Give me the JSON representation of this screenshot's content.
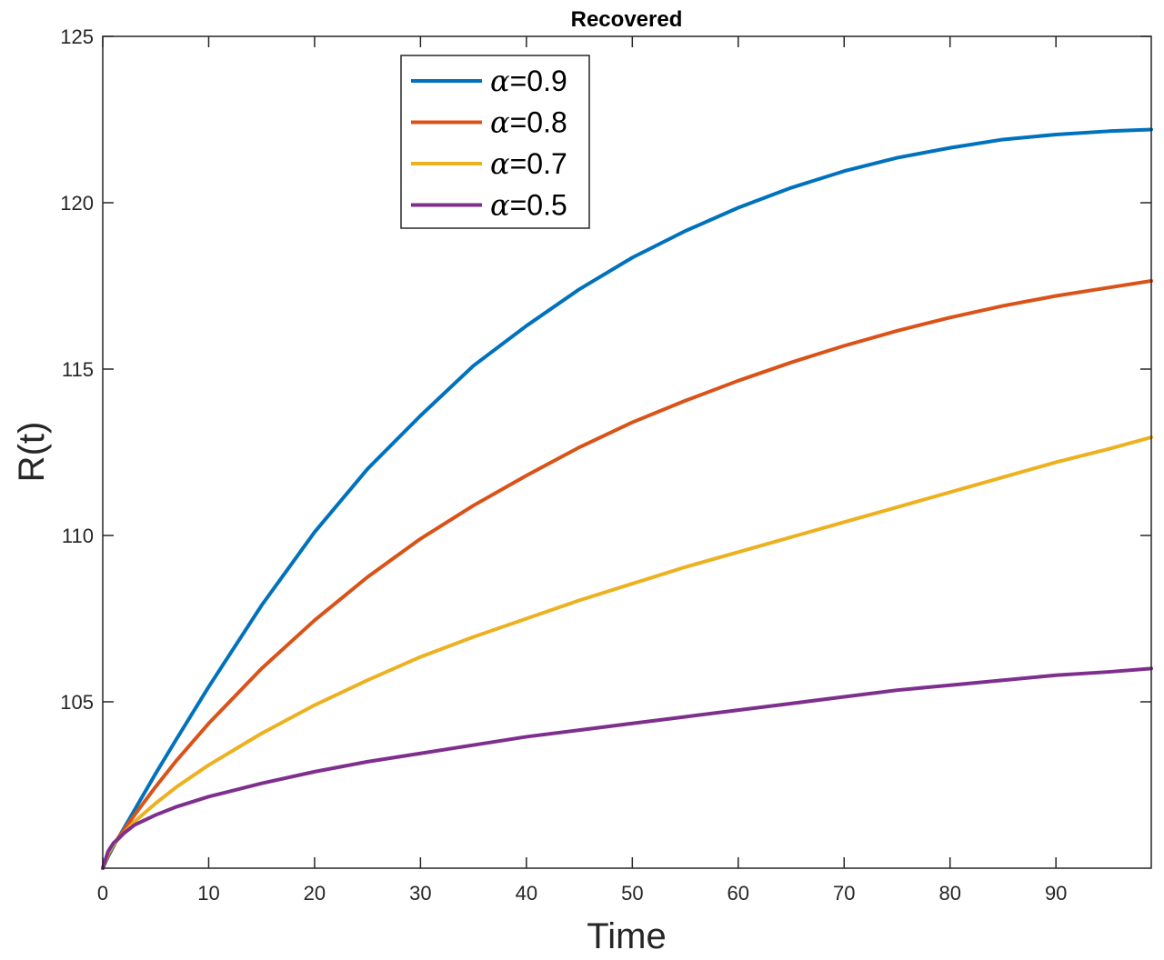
{
  "chart_data": {
    "type": "line",
    "title": "Recovered",
    "xlabel": "Time",
    "ylabel": "R(t)",
    "xlim": [
      0,
      99
    ],
    "ylim": [
      100,
      125
    ],
    "xticks": [
      0,
      10,
      20,
      30,
      40,
      50,
      60,
      70,
      80,
      90
    ],
    "yticks": [
      105,
      110,
      115,
      120,
      125
    ],
    "grid": false,
    "legend_position": "top-center",
    "series": [
      {
        "name": "α=0.9",
        "alpha_symbol": "α",
        "alpha_value": "=0.9",
        "color": "#0072BD",
        "x": [
          0,
          0.5,
          1,
          2,
          3,
          5,
          7,
          10,
          15,
          20,
          25,
          30,
          35,
          40,
          45,
          50,
          55,
          60,
          65,
          70,
          75,
          80,
          85,
          90,
          95,
          99
        ],
        "y": [
          100,
          100.35,
          100.65,
          101.2,
          101.75,
          102.85,
          103.9,
          105.45,
          107.9,
          110.1,
          112.0,
          113.6,
          115.1,
          116.3,
          117.4,
          118.35,
          119.15,
          119.85,
          120.45,
          120.95,
          121.35,
          121.65,
          121.9,
          122.05,
          122.15,
          122.2
        ]
      },
      {
        "name": "α=0.8",
        "alpha_symbol": "α",
        "alpha_value": "=0.8",
        "color": "#D95319",
        "x": [
          0,
          0.5,
          1,
          2,
          3,
          5,
          7,
          10,
          15,
          20,
          25,
          30,
          35,
          40,
          45,
          50,
          55,
          60,
          65,
          70,
          75,
          80,
          85,
          90,
          95,
          99
        ],
        "y": [
          100,
          100.4,
          100.7,
          101.15,
          101.6,
          102.45,
          103.25,
          104.35,
          106.0,
          107.45,
          108.75,
          109.9,
          110.9,
          111.8,
          112.65,
          113.4,
          114.05,
          114.65,
          115.2,
          115.7,
          116.15,
          116.55,
          116.9,
          117.2,
          117.45,
          117.65
        ]
      },
      {
        "name": "α=0.7",
        "alpha_symbol": "α",
        "alpha_value": "=0.7",
        "color": "#EDB120",
        "x": [
          0,
          0.5,
          1,
          2,
          3,
          5,
          7,
          10,
          15,
          20,
          25,
          30,
          35,
          40,
          45,
          50,
          55,
          60,
          65,
          70,
          75,
          80,
          85,
          90,
          95,
          99
        ],
        "y": [
          100,
          100.45,
          100.7,
          101.05,
          101.4,
          101.95,
          102.45,
          103.1,
          104.05,
          104.9,
          105.65,
          106.35,
          106.95,
          107.5,
          108.05,
          108.55,
          109.05,
          109.5,
          109.95,
          110.4,
          110.85,
          111.3,
          111.75,
          112.2,
          112.6,
          112.95
        ]
      },
      {
        "name": "α=0.5",
        "alpha_symbol": "α",
        "alpha_value": "=0.5",
        "color": "#7E2F8E",
        "x": [
          0,
          0.5,
          1,
          2,
          3,
          5,
          7,
          10,
          15,
          20,
          25,
          30,
          35,
          40,
          45,
          50,
          55,
          60,
          65,
          70,
          75,
          80,
          85,
          90,
          95,
          99
        ],
        "y": [
          100,
          100.5,
          100.75,
          101.05,
          101.3,
          101.6,
          101.85,
          102.15,
          102.55,
          102.9,
          103.2,
          103.45,
          103.7,
          103.95,
          104.15,
          104.35,
          104.55,
          104.75,
          104.95,
          105.15,
          105.35,
          105.5,
          105.65,
          105.8,
          105.9,
          106.0
        ]
      }
    ]
  }
}
